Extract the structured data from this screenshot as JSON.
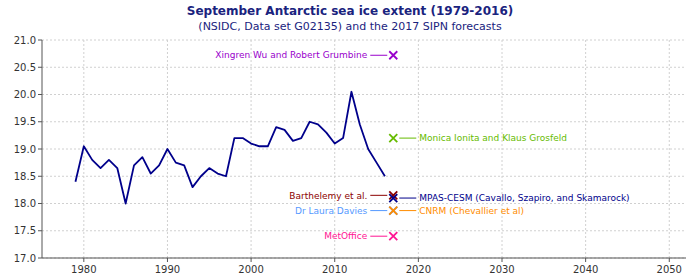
{
  "chart_data": {
    "type": "line",
    "title": "September Antarctic sea ice extent (1979-2016)",
    "subtitle": "(NSIDC, Data set G02135) and the 2017 SIPN forecasts",
    "xlim": [
      1975,
      2052
    ],
    "ylim": [
      17.0,
      21.0
    ],
    "xticks": [
      1980,
      1990,
      2000,
      2010,
      2020,
      2030,
      2040,
      2050
    ],
    "yticks": [
      {
        "value": 17.0,
        "label": "17.0"
      },
      17.5,
      {
        "value": 18.0,
        "label": "18.0"
      },
      18.5,
      {
        "value": 19.0,
        "label": "19.0"
      },
      19.5,
      {
        "value": 20.0,
        "label": "20.0"
      },
      20.5,
      {
        "value": 21.0,
        "label": "21.0"
      }
    ],
    "grid": true,
    "series": [
      {
        "type": "line",
        "color": "#00008B",
        "x": [
          1979,
          1980,
          1981,
          1982,
          1983,
          1984,
          1985,
          1986,
          1987,
          1988,
          1989,
          1990,
          1991,
          1992,
          1993,
          1994,
          1995,
          1996,
          1997,
          1998,
          1999,
          2000,
          2001,
          2002,
          2003,
          2004,
          2005,
          2006,
          2007,
          2008,
          2009,
          2010,
          2011,
          2012,
          2013,
          2014,
          2015,
          2016
        ],
        "values": [
          18.4,
          19.05,
          18.8,
          18.65,
          18.8,
          18.65,
          18.0,
          18.7,
          18.85,
          18.55,
          18.7,
          19.0,
          18.75,
          18.7,
          18.3,
          18.5,
          18.65,
          18.55,
          18.5,
          19.2,
          19.2,
          19.1,
          19.05,
          19.05,
          19.4,
          19.35,
          19.15,
          19.2,
          19.5,
          19.45,
          19.3,
          19.1,
          19.2,
          20.05,
          19.45,
          19.0,
          18.75,
          18.5
        ]
      },
      {
        "type": "scatter",
        "marker": "x",
        "name": "Xingren Wu and Robert Grumbine",
        "color": "#9900CC",
        "x": [
          2017
        ],
        "values": [
          20.72
        ]
      },
      {
        "type": "scatter",
        "marker": "x",
        "name": "Monica Ionita and Klaus Grosfeld",
        "color": "#66BB00",
        "x": [
          2017
        ],
        "values": [
          19.2
        ]
      },
      {
        "type": "scatter",
        "marker": "x",
        "name": "Barthelemy et al.",
        "color": "#8B0000",
        "x": [
          2017
        ],
        "values": [
          18.15
        ]
      },
      {
        "type": "scatter",
        "marker": "x",
        "name": "MPAS-CESM (Cavallo, Szapiro, and Skamarock)",
        "color": "#00008B",
        "x": [
          2017
        ],
        "values": [
          18.1
        ]
      },
      {
        "type": "scatter",
        "marker": "x",
        "name": "Dr Laura Davies",
        "color": "#5599FF",
        "x": [
          2017
        ],
        "values": [
          17.87
        ]
      },
      {
        "type": "scatter",
        "marker": "x",
        "name": "CNRM (Chevallier et al)",
        "color": "#FF8C00",
        "x": [
          2017
        ],
        "values": [
          17.87
        ]
      },
      {
        "type": "scatter",
        "marker": "x",
        "name": "MetOffice",
        "color": "#FF1493",
        "x": [
          2017
        ],
        "values": [
          17.4
        ]
      }
    ]
  }
}
